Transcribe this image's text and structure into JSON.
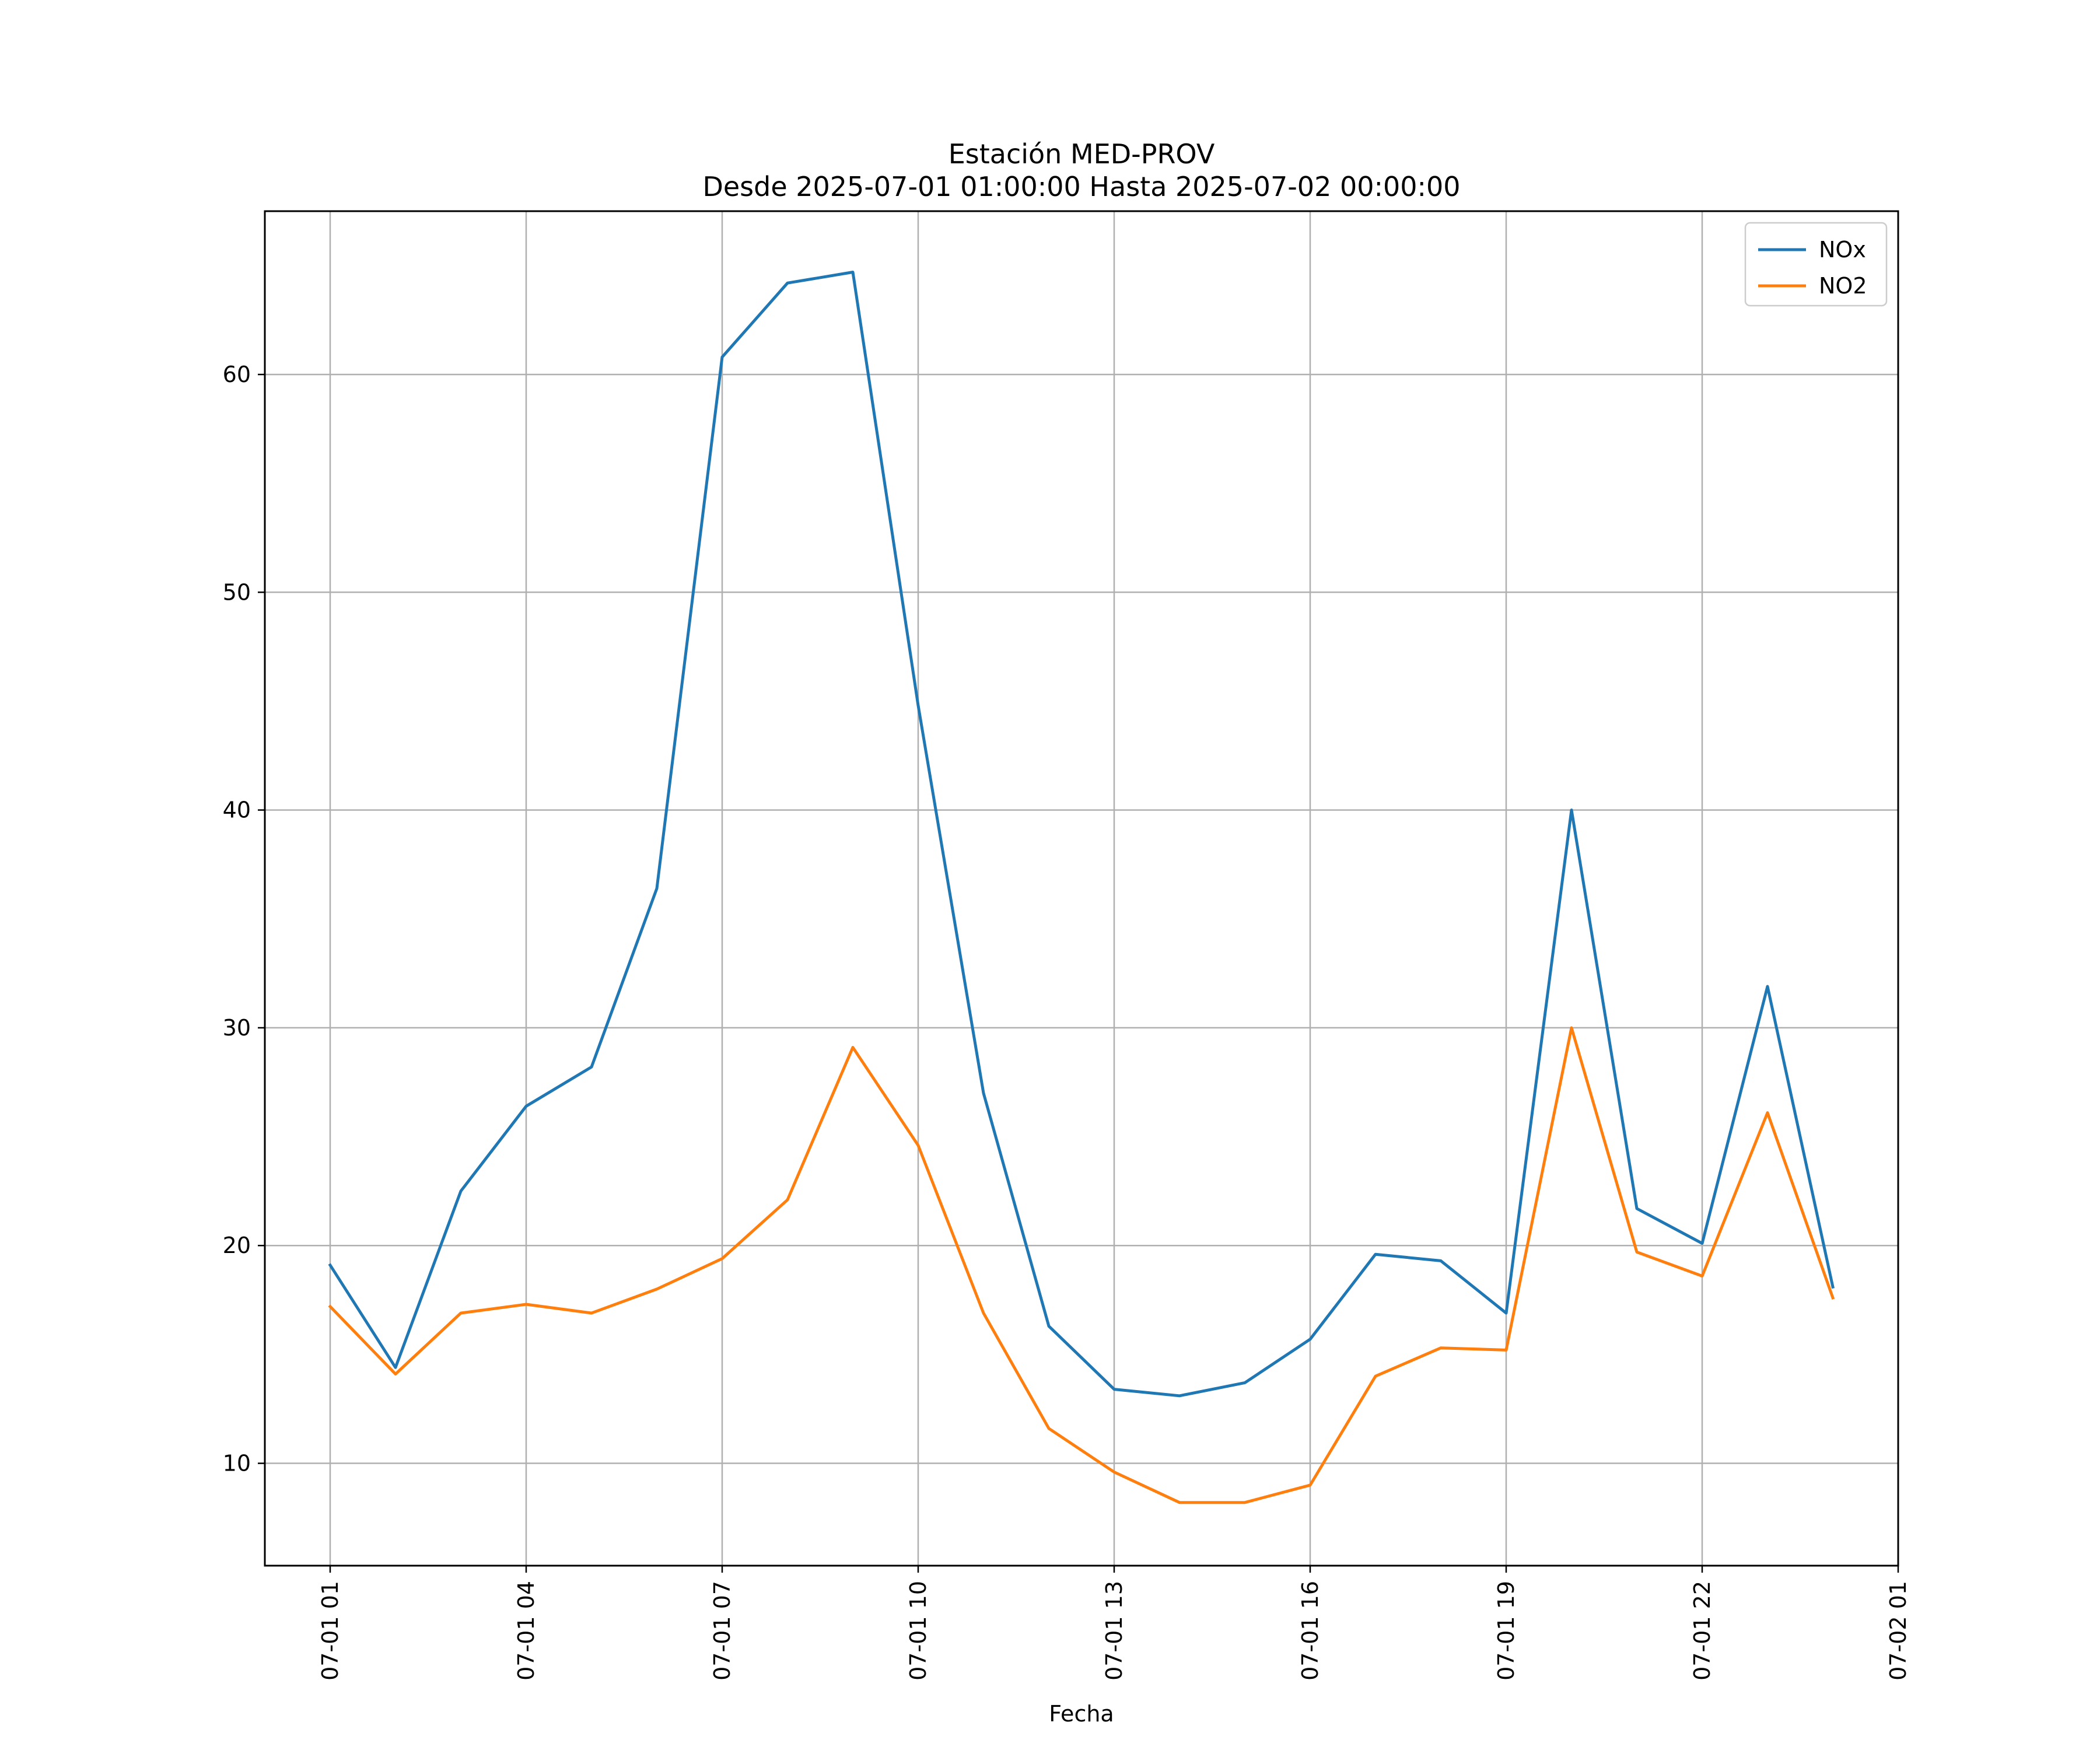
{
  "chart_data": {
    "type": "line",
    "title": "Estación MED-PROV",
    "subtitle": "Desde 2025-07-01 01:00:00 Hasta 2025-07-02 00:00:00",
    "xlabel": "Fecha",
    "ylabel": "",
    "x": [
      "2025-07-01 01:00",
      "2025-07-01 02:00",
      "2025-07-01 03:00",
      "2025-07-01 04:00",
      "2025-07-01 05:00",
      "2025-07-01 06:00",
      "2025-07-01 07:00",
      "2025-07-01 08:00",
      "2025-07-01 09:00",
      "2025-07-01 10:00",
      "2025-07-01 11:00",
      "2025-07-01 12:00",
      "2025-07-01 13:00",
      "2025-07-01 14:00",
      "2025-07-01 15:00",
      "2025-07-01 16:00",
      "2025-07-01 17:00",
      "2025-07-01 18:00",
      "2025-07-01 19:00",
      "2025-07-01 20:00",
      "2025-07-01 21:00",
      "2025-07-01 22:00",
      "2025-07-01 23:00",
      "2025-07-02 00:00"
    ],
    "xlim": [
      "2025-07-01 00:00",
      "2025-07-02 01:00"
    ],
    "xticks": [
      "2025-07-01 01:00",
      "2025-07-01 04:00",
      "2025-07-01 07:00",
      "2025-07-01 10:00",
      "2025-07-01 13:00",
      "2025-07-01 16:00",
      "2025-07-01 19:00",
      "2025-07-01 22:00",
      "2025-07-02 01:00"
    ],
    "xtick_labels": [
      "07-01 01",
      "07-01 04",
      "07-01 07",
      "07-01 10",
      "07-01 13",
      "07-01 16",
      "07-01 19",
      "07-01 22",
      "07-02 01"
    ],
    "series": [
      {
        "name": "NOx",
        "color": "#1f77b4",
        "values": [
          19.1,
          14.4,
          22.5,
          26.4,
          28.2,
          36.4,
          60.8,
          64.2,
          64.7,
          44.8,
          27.0,
          16.3,
          13.4,
          13.1,
          13.7,
          15.7,
          19.6,
          19.3,
          16.9,
          40.0,
          21.7,
          20.1,
          31.9,
          18.1
        ]
      },
      {
        "name": "NO2",
        "color": "#ff7f0e",
        "values": [
          17.2,
          14.1,
          16.9,
          17.3,
          16.9,
          18.0,
          19.4,
          22.1,
          29.1,
          24.6,
          16.9,
          11.6,
          9.6,
          8.2,
          8.2,
          9.0,
          14.0,
          15.3,
          15.2,
          30.0,
          19.7,
          18.6,
          26.1,
          17.6
        ]
      }
    ],
    "ylim": [
      5.3,
      67.5
    ],
    "yticks": [
      10,
      20,
      30,
      40,
      50,
      60
    ],
    "grid": true,
    "legend_position": "top-right"
  }
}
